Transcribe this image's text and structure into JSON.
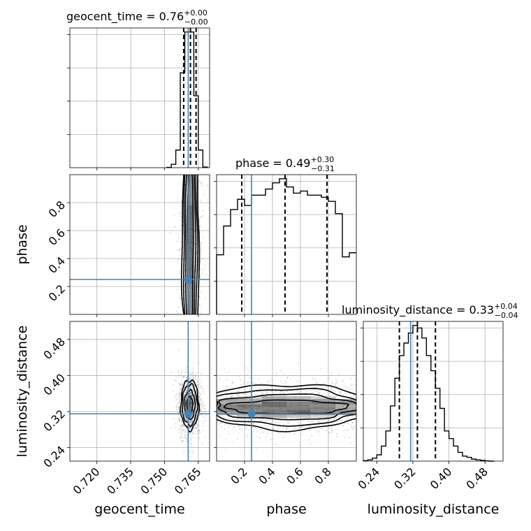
{
  "chart_data": {
    "type": "corner",
    "parameters": [
      "geocent_time",
      "phase",
      "luminosity_distance"
    ],
    "truths": {
      "geocent_time": 0.7605,
      "phase": 0.25,
      "luminosity_distance": 0.315
    },
    "quantile_levels": [
      0.16,
      0.5,
      0.84
    ],
    "grid": true,
    "marginals": [
      {
        "param": "geocent_time",
        "title": "geocent_time = 0.76",
        "median": "0.76",
        "plus": "+0.00",
        "minus": "−0.00",
        "quantiles": [
          0.7585,
          0.7615,
          0.764
        ],
        "bin_edges": [
          0.751,
          0.753,
          0.755,
          0.757,
          0.759,
          0.761,
          0.763,
          0.765,
          0.767,
          0.769
        ],
        "counts": [
          2,
          25,
          130,
          700,
          1000,
          1000,
          530,
          130,
          5
        ]
      },
      {
        "param": "phase",
        "title": "phase = 0.49",
        "median": "0.49",
        "plus": "+0.30",
        "minus": "−0.31",
        "quantiles": [
          0.18,
          0.49,
          0.79
        ],
        "bin_edges": [
          0.0,
          0.05,
          0.1,
          0.15,
          0.2,
          0.25,
          0.3,
          0.35,
          0.4,
          0.45,
          0.5,
          0.55,
          0.6,
          0.65,
          0.7,
          0.75,
          0.8,
          0.85,
          0.9,
          0.95,
          1.0
        ],
        "counts": [
          145,
          215,
          255,
          280,
          265,
          290,
          290,
          305,
          320,
          330,
          310,
          295,
          300,
          290,
          290,
          285,
          275,
          245,
          140,
          150
        ]
      },
      {
        "param": "luminosity_distance",
        "title": "luminosity_distance = 0.33",
        "median": "0.33",
        "plus": "+0.04",
        "minus": "−0.04",
        "quantiles": [
          0.29,
          0.33,
          0.37
        ],
        "bin_edges": [
          0.2,
          0.21,
          0.22,
          0.23,
          0.24,
          0.25,
          0.26,
          0.27,
          0.28,
          0.29,
          0.3,
          0.31,
          0.32,
          0.33,
          0.34,
          0.35,
          0.36,
          0.37,
          0.38,
          0.39,
          0.4,
          0.41,
          0.42,
          0.43,
          0.44,
          0.45,
          0.46,
          0.47,
          0.48,
          0.49,
          0.5
        ],
        "counts": [
          0,
          2,
          5,
          12,
          25,
          60,
          120,
          220,
          330,
          420,
          470,
          510,
          540,
          530,
          490,
          420,
          360,
          290,
          210,
          120,
          90,
          60,
          35,
          20,
          15,
          8,
          5,
          3,
          1,
          0
        ]
      }
    ],
    "axes": {
      "geocent_time": {
        "range": [
          0.708,
          0.77
        ],
        "ticks": [
          "0.720",
          "0.735",
          "0.750",
          "0.765"
        ],
        "label": "geocent_time"
      },
      "phase": {
        "range": [
          0.0,
          1.0
        ],
        "ticks": [
          "0.2",
          "0.4",
          "0.6",
          "0.8"
        ],
        "label": "phase"
      },
      "luminosity_distance": {
        "range": [
          0.21,
          0.52
        ],
        "ticks": [
          "0.24",
          "0.32",
          "0.40",
          "0.48"
        ],
        "label": "luminosity_distance"
      }
    },
    "joint": [
      {
        "x": "geocent_time",
        "y": "phase",
        "center": [
          0.7615,
          0.5
        ],
        "contours": [
          [
            0.0012,
            0.7
          ],
          [
            0.0022,
            0.79
          ],
          [
            0.003,
            0.84
          ],
          [
            0.0038,
            0.86
          ]
        ]
      },
      {
        "x": "geocent_time",
        "y": "luminosity_distance",
        "center": [
          0.7612,
          0.335
        ],
        "contours": [
          [
            0.0013,
            0.018
          ],
          [
            0.0023,
            0.032
          ],
          [
            0.0033,
            0.045
          ],
          [
            0.004,
            0.055
          ]
        ]
      },
      {
        "x": "phase",
        "y": "luminosity_distance",
        "center": [
          0.5,
          0.33
        ],
        "contours": [
          [
            0.44,
            0.015
          ],
          [
            0.5,
            0.028
          ],
          [
            0.55,
            0.04
          ],
          [
            0.6,
            0.05
          ]
        ]
      }
    ]
  }
}
